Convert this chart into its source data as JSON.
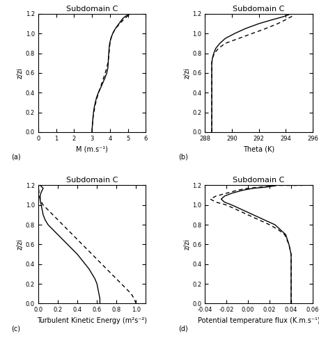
{
  "title": "Subdomain C",
  "background_color": "#ffffff",
  "panels": [
    {
      "label": "(a)",
      "xlabel": "M (m.s⁻¹)",
      "ylabel": "z/zi",
      "xlim": [
        0,
        6
      ],
      "ylim": [
        0.0,
        1.2
      ],
      "xticks": [
        0,
        1,
        2,
        3,
        4,
        5,
        6
      ],
      "yticks": [
        0.0,
        0.2,
        0.4,
        0.6,
        0.8,
        1.0,
        1.2
      ],
      "les_x": [
        3.0,
        3.0,
        3.01,
        3.02,
        3.03,
        3.05,
        3.08,
        3.12,
        3.18,
        3.25,
        3.35,
        3.48,
        3.6,
        3.72,
        3.82,
        3.88,
        3.9,
        3.91,
        3.93,
        3.95,
        3.98,
        4.05,
        4.15,
        4.3,
        4.5,
        4.7,
        4.9,
        5.05,
        5.1,
        5.1
      ],
      "les_y": [
        0.0,
        0.02,
        0.05,
        0.08,
        0.1,
        0.15,
        0.2,
        0.25,
        0.3,
        0.35,
        0.4,
        0.45,
        0.5,
        0.55,
        0.6,
        0.65,
        0.7,
        0.75,
        0.8,
        0.85,
        0.9,
        0.95,
        1.0,
        1.05,
        1.1,
        1.15,
        1.18,
        1.19,
        1.2,
        1.2
      ],
      "rans_x": [
        3.0,
        3.0,
        3.01,
        3.02,
        3.04,
        3.07,
        3.12,
        3.18,
        3.28,
        3.4,
        3.55,
        3.68,
        3.8,
        3.88,
        3.92,
        3.95,
        3.97,
        4.0,
        4.05,
        4.15,
        4.3,
        4.55,
        4.8,
        5.0,
        5.1,
        5.1
      ],
      "rans_y": [
        0.0,
        0.02,
        0.05,
        0.08,
        0.12,
        0.17,
        0.22,
        0.28,
        0.35,
        0.42,
        0.5,
        0.57,
        0.64,
        0.7,
        0.75,
        0.8,
        0.85,
        0.9,
        0.95,
        1.0,
        1.05,
        1.1,
        1.15,
        1.18,
        1.19,
        1.2
      ]
    },
    {
      "label": "(b)",
      "xlabel": "Theta (K)",
      "ylabel": "z/zi",
      "xlim": [
        288,
        296
      ],
      "ylim": [
        0.0,
        1.2
      ],
      "xticks": [
        288,
        290,
        292,
        294,
        296
      ],
      "yticks": [
        0.0,
        0.2,
        0.4,
        0.6,
        0.8,
        1.0,
        1.2
      ],
      "les_x": [
        288.5,
        288.5,
        288.5,
        288.5,
        288.5,
        288.5,
        288.5,
        288.5,
        288.5,
        288.55,
        288.65,
        288.8,
        289.1,
        289.5,
        290.2,
        291.0,
        292.0,
        293.0,
        293.8,
        294.2,
        294.35,
        294.4,
        294.4
      ],
      "les_y": [
        0.0,
        0.05,
        0.1,
        0.2,
        0.3,
        0.4,
        0.5,
        0.6,
        0.7,
        0.75,
        0.8,
        0.85,
        0.9,
        0.95,
        1.0,
        1.05,
        1.1,
        1.14,
        1.17,
        1.19,
        1.2,
        1.2,
        1.2
      ],
      "rans_x": [
        288.5,
        288.5,
        288.5,
        288.5,
        288.5,
        288.5,
        288.5,
        288.5,
        288.5,
        288.55,
        288.7,
        289.0,
        289.5,
        290.5,
        291.5,
        292.5,
        293.4,
        294.0,
        294.4,
        294.6,
        294.7,
        294.7
      ],
      "rans_y": [
        0.0,
        0.05,
        0.1,
        0.2,
        0.3,
        0.4,
        0.5,
        0.6,
        0.7,
        0.75,
        0.8,
        0.85,
        0.9,
        0.95,
        1.0,
        1.05,
        1.1,
        1.14,
        1.17,
        1.19,
        1.2,
        1.2
      ]
    },
    {
      "label": "(c)",
      "xlabel": "Turbulent Kinetic Energy (m²s⁻²)",
      "ylabel": "z/zi",
      "xlim": [
        0.0,
        1.1
      ],
      "ylim": [
        0.0,
        1.2
      ],
      "xticks": [
        0.0,
        0.2,
        0.4,
        0.6,
        0.8,
        1.0
      ],
      "yticks": [
        0.0,
        0.2,
        0.4,
        0.6,
        0.8,
        1.0,
        1.2
      ],
      "les_x": [
        0.63,
        0.63,
        0.63,
        0.62,
        0.61,
        0.6,
        0.58,
        0.55,
        0.52,
        0.48,
        0.44,
        0.4,
        0.35,
        0.3,
        0.25,
        0.2,
        0.15,
        0.1,
        0.07,
        0.05,
        0.04,
        0.03,
        0.02,
        0.02,
        0.03,
        0.04,
        0.05,
        0.04,
        0.03,
        0.02,
        0.01
      ],
      "les_y": [
        0.0,
        0.02,
        0.05,
        0.1,
        0.15,
        0.2,
        0.25,
        0.3,
        0.35,
        0.4,
        0.45,
        0.5,
        0.55,
        0.6,
        0.65,
        0.7,
        0.75,
        0.8,
        0.85,
        0.9,
        0.95,
        1.0,
        1.05,
        1.1,
        1.13,
        1.15,
        1.17,
        1.18,
        1.19,
        1.2,
        1.2
      ],
      "rans_x": [
        1.0,
        0.98,
        0.95,
        0.9,
        0.85,
        0.8,
        0.75,
        0.7,
        0.65,
        0.6,
        0.55,
        0.5,
        0.45,
        0.4,
        0.35,
        0.3,
        0.25,
        0.2,
        0.15,
        0.1,
        0.05,
        0.02,
        0.01,
        0.0
      ],
      "rans_y": [
        0.0,
        0.05,
        0.1,
        0.15,
        0.2,
        0.25,
        0.3,
        0.35,
        0.4,
        0.45,
        0.5,
        0.55,
        0.6,
        0.65,
        0.7,
        0.75,
        0.8,
        0.85,
        0.9,
        0.95,
        1.0,
        1.05,
        1.1,
        1.2
      ]
    },
    {
      "label": "(d)",
      "xlabel": "Potential temperature flux (K.m.s⁻¹)",
      "ylabel": "z/zi",
      "xlim": [
        -0.04,
        0.06
      ],
      "ylim": [
        0.0,
        1.2
      ],
      "xticks": [
        -0.04,
        -0.02,
        0.0,
        0.02,
        0.04,
        0.06
      ],
      "yticks": [
        0.0,
        0.2,
        0.4,
        0.6,
        0.8,
        1.0,
        1.2
      ],
      "les_x": [
        0.04,
        0.04,
        0.04,
        0.04,
        0.04,
        0.04,
        0.038,
        0.035,
        0.03,
        0.025,
        0.015,
        0.005,
        -0.005,
        -0.015,
        -0.022,
        -0.025,
        -0.022,
        -0.015,
        -0.005,
        0.005,
        0.015,
        0.022,
        0.025,
        0.022,
        0.015,
        0.005
      ],
      "les_y": [
        0.0,
        0.1,
        0.2,
        0.3,
        0.4,
        0.5,
        0.6,
        0.7,
        0.75,
        0.8,
        0.85,
        0.9,
        0.95,
        1.0,
        1.03,
        1.06,
        1.09,
        1.12,
        1.15,
        1.17,
        1.18,
        1.19,
        1.2,
        1.2,
        1.2,
        1.2
      ],
      "rans_x": [
        0.04,
        0.04,
        0.04,
        0.04,
        0.04,
        0.04,
        0.038,
        0.034,
        0.028,
        0.02,
        0.01,
        0.0,
        -0.01,
        -0.02,
        -0.03,
        -0.035,
        -0.03,
        -0.02,
        -0.01,
        0.0,
        0.01,
        0.02,
        0.03,
        0.04,
        0.05,
        0.05,
        0.04,
        0.03
      ],
      "rans_y": [
        0.0,
        0.1,
        0.2,
        0.3,
        0.4,
        0.5,
        0.6,
        0.7,
        0.75,
        0.8,
        0.85,
        0.9,
        0.95,
        1.0,
        1.03,
        1.06,
        1.09,
        1.12,
        1.15,
        1.17,
        1.18,
        1.19,
        1.2,
        1.2,
        1.2,
        1.2,
        1.2,
        1.2
      ]
    }
  ],
  "line_color": "#000000",
  "line_width": 1.0,
  "font_size": 7,
  "title_font_size": 8
}
